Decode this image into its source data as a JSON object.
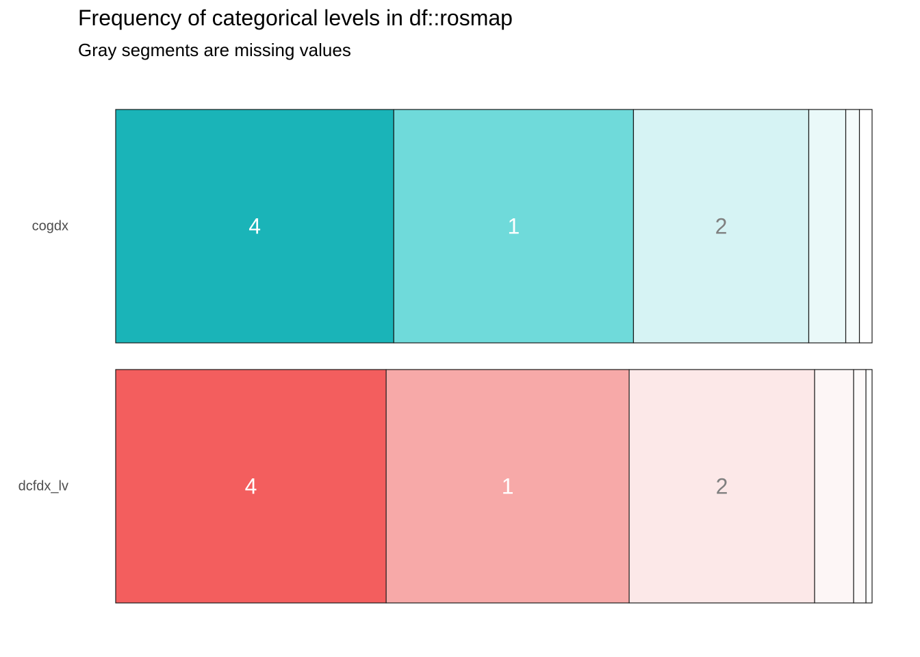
{
  "chart_data": {
    "type": "bar",
    "orientation": "horizontal",
    "stacked": "proportional",
    "title": "Frequency of categorical levels in df::rosmap",
    "subtitle": "Gray segments are missing values",
    "xlabel": "",
    "ylabel": "",
    "grid": false,
    "legend": "none",
    "xlim": [
      0,
      1
    ],
    "rows": [
      {
        "variable": "cogdx",
        "color": "#1AB4B8",
        "segments": [
          {
            "label": "4",
            "value": 0.3676,
            "fill": "#1AB4B8",
            "text_color": "#FFFFFF"
          },
          {
            "label": "1",
            "value": 0.3169,
            "fill": "#6FDADA",
            "text_color": "#FFFFFF"
          },
          {
            "label": "2",
            "value": 0.2317,
            "fill": "#D6F3F4",
            "text_color": "#7F7F7F"
          },
          {
            "label": "",
            "value": 0.0489,
            "fill": "#EAF9F9",
            "text_color": "#7F7F7F"
          },
          {
            "label": "",
            "value": 0.0181,
            "fill": "#F5FCFC",
            "text_color": "#7F7F7F"
          },
          {
            "label": "",
            "value": 0.0167,
            "fill": "#FFFFFF",
            "text_color": "#7F7F7F"
          }
        ]
      },
      {
        "variable": "dcfdx_lv",
        "color": "#F35E5E",
        "segments": [
          {
            "label": "4",
            "value": 0.3576,
            "fill": "#F35E5E",
            "text_color": "#FFFFFF"
          },
          {
            "label": "1",
            "value": 0.3213,
            "fill": "#F7A9A8",
            "text_color": "#FFFFFF"
          },
          {
            "label": "2",
            "value": 0.2452,
            "fill": "#FCE8E8",
            "text_color": "#7F7F7F"
          },
          {
            "label": "",
            "value": 0.0516,
            "fill": "#FDF6F6",
            "text_color": "#7F7F7F"
          },
          {
            "label": "",
            "value": 0.0163,
            "fill": "#FEFAFA",
            "text_color": "#7F7F7F"
          },
          {
            "label": "",
            "value": 0.0081,
            "fill": "#FFFFFF",
            "text_color": "#7F7F7F"
          }
        ]
      }
    ]
  }
}
